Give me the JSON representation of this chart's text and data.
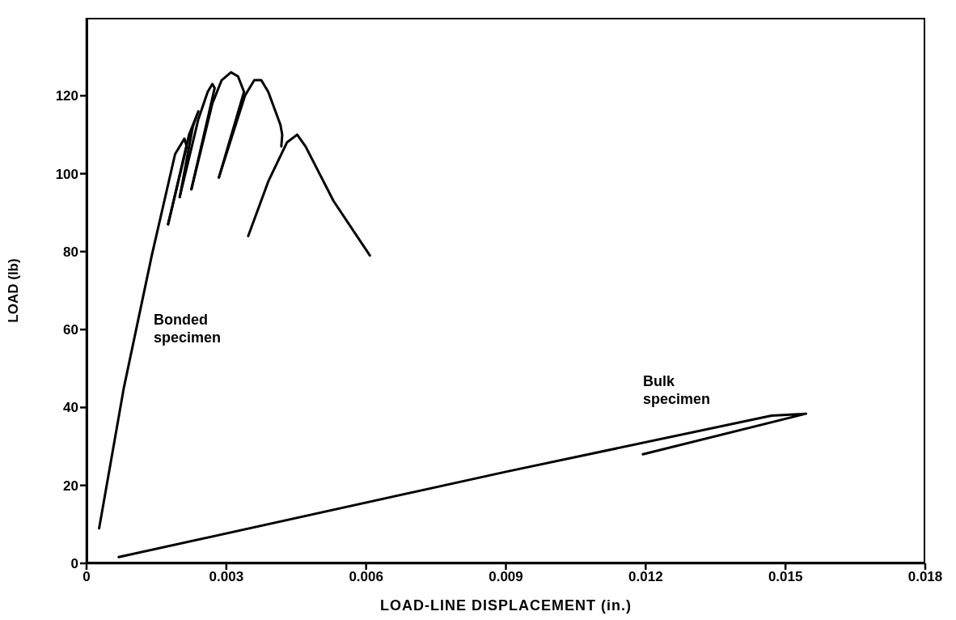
{
  "chart_data": {
    "type": "line",
    "xlabel": "LOAD-LINE DISPLACEMENT (in.)",
    "ylabel": "LOAD (lb)",
    "xlim": [
      0,
      0.018
    ],
    "xticks": [
      0,
      0.003,
      0.006,
      0.009,
      0.012,
      0.015,
      0.018
    ],
    "ylim": [
      0,
      140
    ],
    "yticks": [
      0,
      20,
      40,
      60,
      80,
      100,
      120
    ],
    "marker": "none",
    "line_style": "solid",
    "series": [
      {
        "color": "#000000",
        "x": [
          0.00027,
          0.0008,
          0.0014,
          0.0019,
          0.0021,
          0.00215,
          0.00175
        ],
        "values": [
          9,
          45,
          79,
          105,
          109,
          107,
          87
        ]
      },
      {
        "color": "#000000",
        "x": [
          0.00175,
          0.0022,
          0.0024,
          0.00228,
          0.002
        ],
        "values": [
          87,
          110,
          116,
          112,
          94
        ]
      },
      {
        "color": "#000000",
        "x": [
          0.002,
          0.0024,
          0.0026,
          0.0027,
          0.00275,
          0.00225
        ],
        "values": [
          94,
          114,
          121,
          123,
          122,
          96
        ]
      },
      {
        "color": "#000000",
        "x": [
          0.00225,
          0.0027,
          0.0029,
          0.0031,
          0.00325,
          0.00338,
          0.00284
        ],
        "values": [
          96,
          118,
          124,
          126,
          125,
          121,
          99
        ]
      },
      {
        "color": "#000000",
        "x": [
          0.00284,
          0.0034,
          0.0036,
          0.00375,
          0.0039,
          0.00416,
          0.0042,
          0.00418
        ],
        "values": [
          99,
          120,
          124,
          124,
          121,
          112.6,
          110,
          107
        ]
      },
      {
        "color": "#000000",
        "x": [
          0.00347,
          0.0039,
          0.0043,
          0.00452,
          0.0047,
          0.0053,
          0.00608
        ],
        "values": [
          84,
          98,
          108,
          110,
          107,
          93,
          79
        ]
      },
      {
        "color": "#000000",
        "x": [
          0.00069,
          0.009,
          0.0147,
          0.01544,
          0.01194
        ],
        "values": [
          1.6,
          23.5,
          37.9,
          38.4,
          28
        ]
      }
    ],
    "annotations": [
      "Bonded specimen",
      "Bulk specimen"
    ]
  }
}
